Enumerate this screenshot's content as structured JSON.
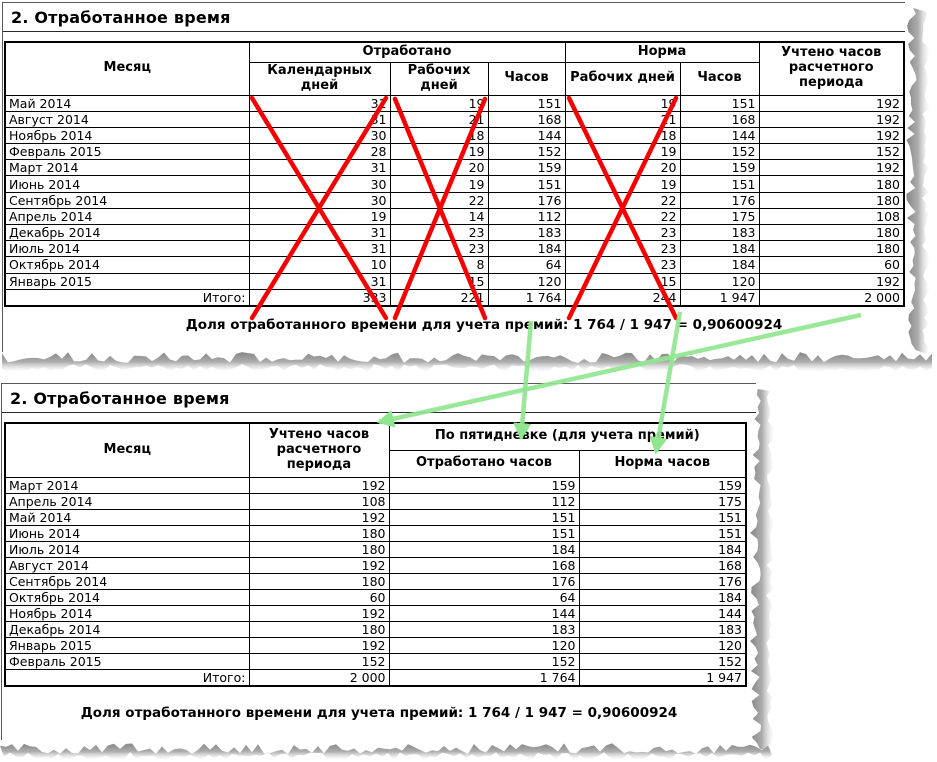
{
  "colors": {
    "cross": "#f50000",
    "arrow": "#8fe68f",
    "torn_shadow": "#8e8e8e",
    "border": "#000000"
  },
  "panel_top": {
    "title": "2. Отработанное время",
    "table": {
      "headers": {
        "month": "Месяц",
        "worked_group": "Отработано",
        "norm_group": "Норма",
        "calendar_days": "Календарных дней",
        "work_days": "Рабочих дней",
        "hours": "Часов",
        "norm_work_days": "Рабочих дней",
        "norm_hours": "Часов",
        "accounted": "Учтено часов расчетного периода"
      },
      "rows": [
        [
          "Май 2014",
          "31",
          "19",
          "151",
          "19",
          "151",
          "192"
        ],
        [
          "Август 2014",
          "31",
          "21",
          "168",
          "21",
          "168",
          "192"
        ],
        [
          "Ноябрь 2014",
          "30",
          "18",
          "144",
          "18",
          "144",
          "192"
        ],
        [
          "Февраль 2015",
          "28",
          "19",
          "152",
          "19",
          "152",
          "152"
        ],
        [
          "Март 2014",
          "31",
          "20",
          "159",
          "20",
          "159",
          "192"
        ],
        [
          "Июнь 2014",
          "30",
          "19",
          "151",
          "19",
          "151",
          "180"
        ],
        [
          "Сентябрь 2014",
          "30",
          "22",
          "176",
          "22",
          "176",
          "180"
        ],
        [
          "Апрель 2014",
          "19",
          "14",
          "112",
          "22",
          "175",
          "108"
        ],
        [
          "Декабрь 2014",
          "31",
          "23",
          "183",
          "23",
          "183",
          "180"
        ],
        [
          "Июль 2014",
          "31",
          "23",
          "184",
          "23",
          "184",
          "180"
        ],
        [
          "Октябрь 2014",
          "10",
          "8",
          "64",
          "23",
          "184",
          "60"
        ],
        [
          "Январь 2015",
          "31",
          "15",
          "120",
          "15",
          "120",
          "192"
        ],
        [
          "Итого:",
          "333",
          "221",
          "1 764",
          "244",
          "1 947",
          "2 000"
        ]
      ]
    },
    "footer": "Доля отработанного времени для учета премий:  1 764 / 1 947 = 0,90600924"
  },
  "panel_bottom": {
    "title": "2. Отработанное время",
    "table": {
      "headers": {
        "month": "Месяц",
        "accounted": "Учтено часов расчетного периода",
        "five_day_group": "По пятидневке (для учета премий)",
        "worked_hours": "Отработано часов",
        "norm_hours": "Норма часов"
      },
      "rows": [
        [
          "Март 2014",
          "192",
          "159",
          "159"
        ],
        [
          "Апрель 2014",
          "108",
          "112",
          "175"
        ],
        [
          "Май 2014",
          "192",
          "151",
          "151"
        ],
        [
          "Июнь 2014",
          "180",
          "151",
          "151"
        ],
        [
          "Июль 2014",
          "180",
          "184",
          "184"
        ],
        [
          "Август 2014",
          "192",
          "168",
          "168"
        ],
        [
          "Сентябрь 2014",
          "180",
          "176",
          "176"
        ],
        [
          "Октябрь 2014",
          "60",
          "64",
          "184"
        ],
        [
          "Ноябрь 2014",
          "192",
          "144",
          "144"
        ],
        [
          "Декабрь 2014",
          "180",
          "183",
          "183"
        ],
        [
          "Январь 2015",
          "192",
          "120",
          "120"
        ],
        [
          "Февраль 2015",
          "152",
          "152",
          "152"
        ],
        [
          "Итого:",
          "2 000",
          "1 764",
          "1 947"
        ]
      ]
    },
    "footer": "Доля отработанного времени для учета премий:  1 764 / 1 947 = 0,90600924"
  },
  "annotations": {
    "crossed_out_columns": [
      "Календарных дней",
      "Рабочих дней",
      "Норма: Рабочих дней"
    ],
    "arrow_targets": [
      "Учтено часов расчетного периода",
      "Отработано часов",
      "Норма часов"
    ]
  }
}
